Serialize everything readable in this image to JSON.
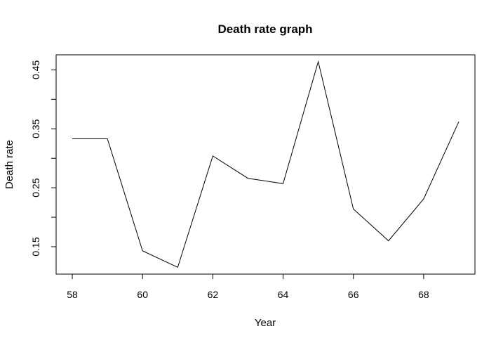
{
  "chart_data": {
    "type": "line",
    "title": "Death rate graph",
    "xlabel": "Year",
    "ylabel": "Death rate",
    "x": [
      58,
      59,
      60,
      61,
      62,
      63,
      64,
      65,
      66,
      67,
      68,
      69
    ],
    "series": [
      {
        "values": [
          0.333,
          0.333,
          0.143,
          0.115,
          0.304,
          0.266,
          0.257,
          0.464,
          0.214,
          0.16,
          0.231,
          0.362
        ]
      }
    ],
    "xlim": [
      57.54,
      69.46
    ],
    "ylim": [
      0.1035,
      0.4755
    ],
    "x_ticks": [
      "58",
      "60",
      "62",
      "64",
      "66",
      "68"
    ],
    "y_ticks": [
      "0.15",
      "0.25",
      "0.35",
      "0.45"
    ],
    "line_color": "#000000",
    "grid": false,
    "legend": "none"
  }
}
